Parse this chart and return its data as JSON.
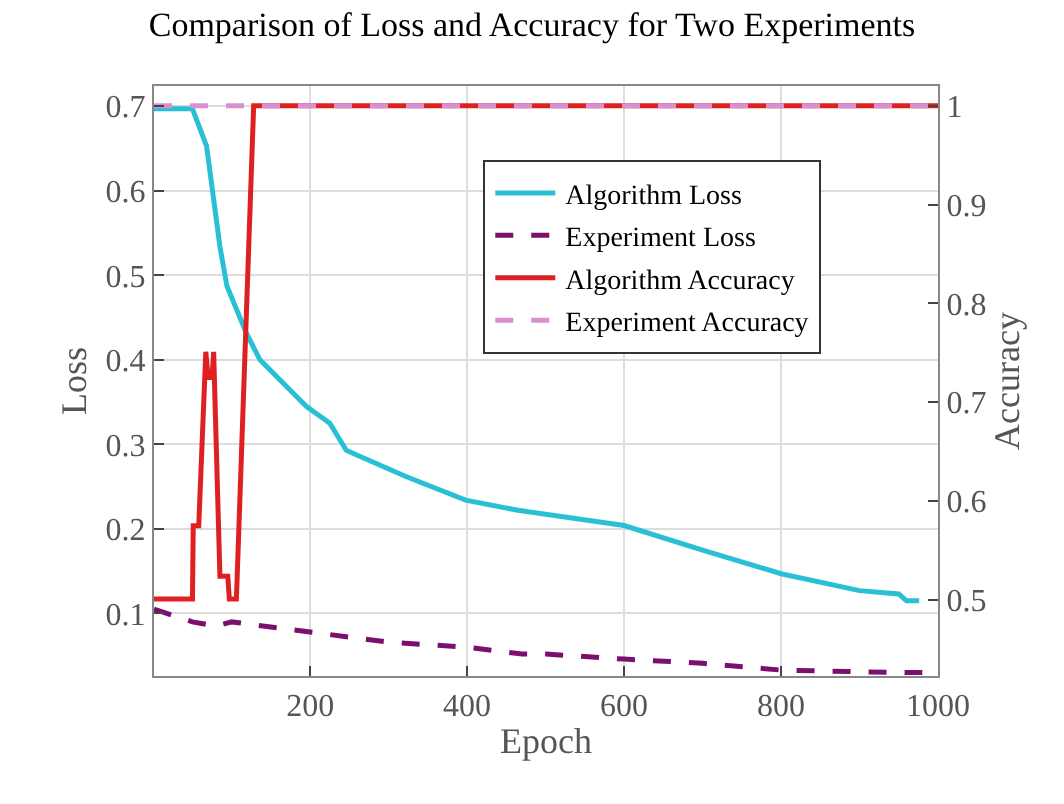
{
  "chart_data": {
    "type": "line",
    "title": "Comparison of Loss and Accuracy for Two Experiments",
    "xlabel": "Epoch",
    "ylabel": "Loss",
    "y2label": "Accuracy",
    "xlim": [
      1,
      1000
    ],
    "xticks": [
      200,
      400,
      600,
      800,
      1000
    ],
    "ylim": [
      0.026,
      0.724
    ],
    "yticks": [
      0.1,
      0.2,
      0.3,
      0.4,
      0.5,
      0.6,
      0.7
    ],
    "y2lim": [
      0.423,
      1.02
    ],
    "y2ticks": [
      0.5,
      0.6,
      0.7,
      0.8,
      0.9,
      1
    ],
    "grid": true,
    "legend": "top right",
    "marker": "none",
    "series": [
      {
        "name": "Algorithm Loss",
        "color": "#29c0d6",
        "line_style": "solid",
        "x": [
          1,
          50,
          68,
          85,
          94,
          119,
          136,
          195,
          225,
          246,
          263,
          322,
          398,
          465,
          600,
          700,
          800,
          900,
          950,
          960,
          976
        ],
        "values": [
          0.697,
          0.697,
          0.653,
          0.534,
          0.487,
          0.431,
          0.4,
          0.345,
          0.325,
          0.293,
          0.286,
          0.262,
          0.234,
          0.222,
          0.204,
          0.175,
          0.147,
          0.127,
          0.123,
          0.115,
          0.115
        ]
      },
      {
        "name": "Experiment Loss",
        "color": "#7b0f6e",
        "line_style": "dashed",
        "x": [
          1,
          50,
          80,
          100,
          200,
          300,
          400,
          470,
          500,
          600,
          700,
          800,
          900,
          980
        ],
        "values": [
          0.105,
          0.09,
          0.085,
          0.09,
          0.078,
          0.066,
          0.06,
          0.052,
          0.052,
          0.046,
          0.041,
          0.033,
          0.031,
          0.03
        ]
      },
      {
        "name": "Algorithm Accuracy",
        "color": "#e02020",
        "line_style": "solid",
        "axis": "y2",
        "x": [
          1,
          50,
          51,
          58,
          67,
          70,
          75,
          77,
          85,
          95,
          97,
          106,
          128,
          1000
        ],
        "values": [
          0.501,
          0.501,
          0.575,
          0.575,
          0.751,
          0.725,
          0.725,
          0.751,
          0.524,
          0.524,
          0.501,
          0.501,
          1.0,
          1.0
        ]
      },
      {
        "name": "Experiment Accuracy",
        "color": "#d990d0",
        "line_style": "dashed",
        "axis": "y2",
        "x": [
          1,
          1000
        ],
        "values": [
          1.0,
          1.0
        ]
      }
    ]
  }
}
